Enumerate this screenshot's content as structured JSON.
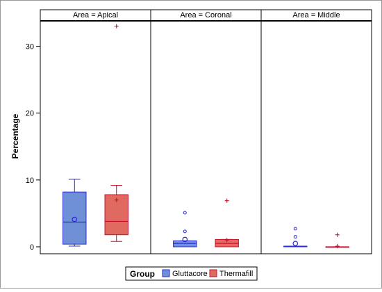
{
  "chart_data": {
    "type": "box",
    "ylabel": "Percentage",
    "ylim": [
      0,
      33.8
    ],
    "yticks": [
      0,
      10,
      20,
      30
    ],
    "legend": {
      "title": "Group",
      "placement": "bottom-center",
      "items": [
        {
          "label": "Gluttacore",
          "color": "#6f8fd6",
          "stroke": "#2a2ad0"
        },
        {
          "label": "Thermafill",
          "color": "#e06a60",
          "stroke": "#c8102e"
        }
      ]
    },
    "panels": [
      {
        "title": "Area = Apical",
        "boxes": [
          {
            "group": "Gluttacore",
            "min": 0.1,
            "q1": 0.4,
            "median": 3.7,
            "q3": 8.2,
            "max": 10.1,
            "mean": 4.1,
            "outliers": []
          },
          {
            "group": "Thermafill",
            "min": 0.8,
            "q1": 1.8,
            "median": 3.8,
            "q3": 7.8,
            "max": 9.2,
            "mean": 7.0,
            "outliers": [
              33.0
            ]
          }
        ]
      },
      {
        "title": "Area = Coronal",
        "boxes": [
          {
            "group": "Gluttacore",
            "min": 0.0,
            "q1": 0.0,
            "median": 0.5,
            "q3": 0.9,
            "max": 0.9,
            "mean": 1.1,
            "outliers": [
              2.3,
              5.1
            ]
          },
          {
            "group": "Thermafill",
            "min": 0.0,
            "q1": 0.0,
            "median": 0.5,
            "q3": 1.1,
            "max": 1.1,
            "mean": 1.0,
            "outliers": [
              6.9
            ]
          }
        ]
      },
      {
        "title": "Area = Middle",
        "boxes": [
          {
            "group": "Gluttacore",
            "min": 0.0,
            "q1": 0.0,
            "median": 0.1,
            "q3": 0.1,
            "max": 0.1,
            "mean": 0.5,
            "outliers": [
              1.5,
              2.7
            ]
          },
          {
            "group": "Thermafill",
            "min": 0.0,
            "q1": 0.0,
            "median": 0.0,
            "q3": 0.0,
            "max": 0.0,
            "mean": 0.1,
            "outliers": [
              1.8
            ]
          }
        ]
      }
    ]
  }
}
